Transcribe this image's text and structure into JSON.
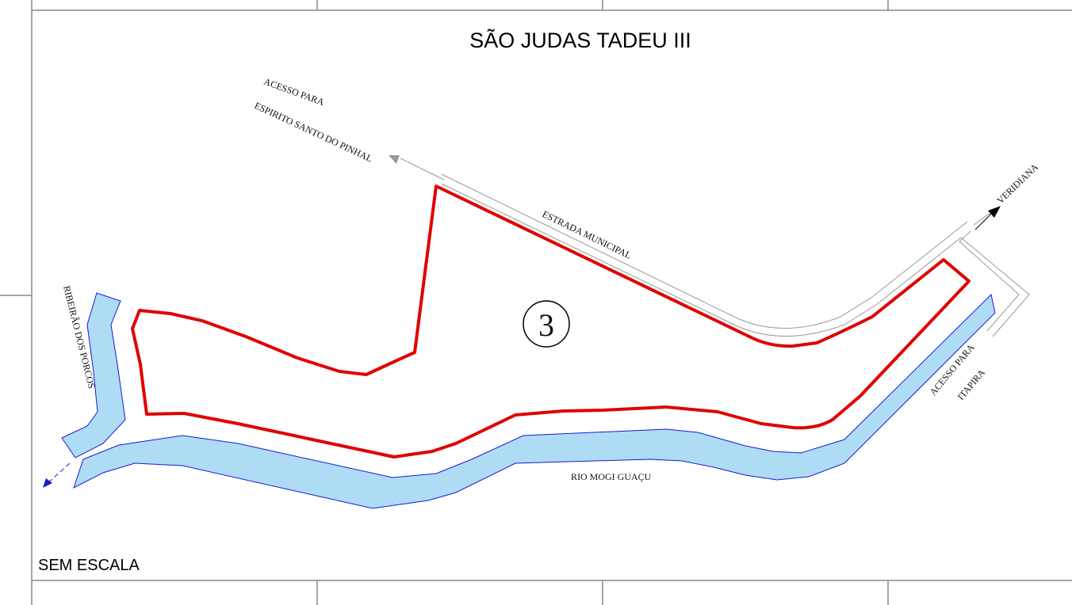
{
  "title": "SÃO JUDAS TADEU III",
  "labels": {
    "access_top_1": "ACESSO PARA",
    "access_top_2": "ESPIRITO SANTO DO PINHAL",
    "road": "ESTRADA MUNICIPAL",
    "veridiana": "VERIDIANA",
    "creek": "RIBEIRÃO DOS PORCOS",
    "area_number": "3",
    "access_right_1": "ACESSO PARA",
    "access_right_2": "ITAPIRA",
    "river": "RIO MOGI GUAÇU"
  },
  "scale_note": "SEM ESCALA"
}
